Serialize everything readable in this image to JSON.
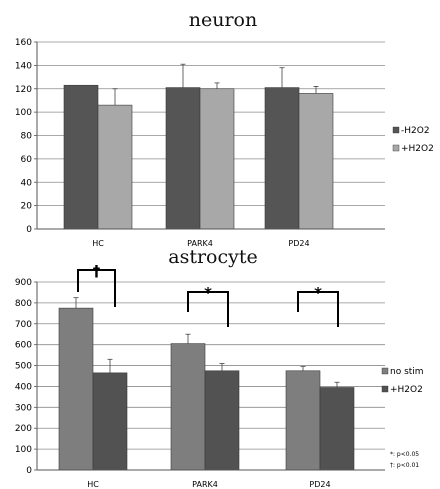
{
  "chart_data": [
    {
      "type": "bar",
      "title": "neuron",
      "categories": [
        "HC",
        "PARK4",
        "PD24"
      ],
      "ylim": [
        0,
        160
      ],
      "yticks": [
        0,
        20,
        40,
        60,
        80,
        100,
        120,
        140,
        160
      ],
      "grid": true,
      "legend_position": "right",
      "series": [
        {
          "name": "-H2O2",
          "values": [
            123,
            121,
            121
          ],
          "error": [
            0,
            20,
            17
          ],
          "color": "#555555"
        },
        {
          "name": "+H2O2",
          "values": [
            106,
            120,
            116
          ],
          "error": [
            14,
            5,
            6
          ],
          "color": "#a8a8a8"
        }
      ]
    },
    {
      "type": "bar",
      "title": "astrocyte",
      "categories": [
        "HC",
        "PARK4",
        "PD24"
      ],
      "ylim": [
        0,
        900
      ],
      "yticks": [
        0,
        100,
        200,
        300,
        400,
        500,
        600,
        700,
        800,
        900
      ],
      "grid": true,
      "legend_position": "right",
      "series": [
        {
          "name": "no stim",
          "values": [
            775,
            605,
            475
          ],
          "error": [
            50,
            45,
            20
          ],
          "color": "#7e7e7e"
        },
        {
          "name": "+H2O2",
          "values": [
            465,
            475,
            395
          ],
          "error": [
            65,
            35,
            25
          ],
          "color": "#525252"
        }
      ],
      "annotations": [
        "†",
        "*",
        "*"
      ],
      "footnotes": [
        "*: p<0.05",
        "†: p<0.01"
      ]
    }
  ]
}
